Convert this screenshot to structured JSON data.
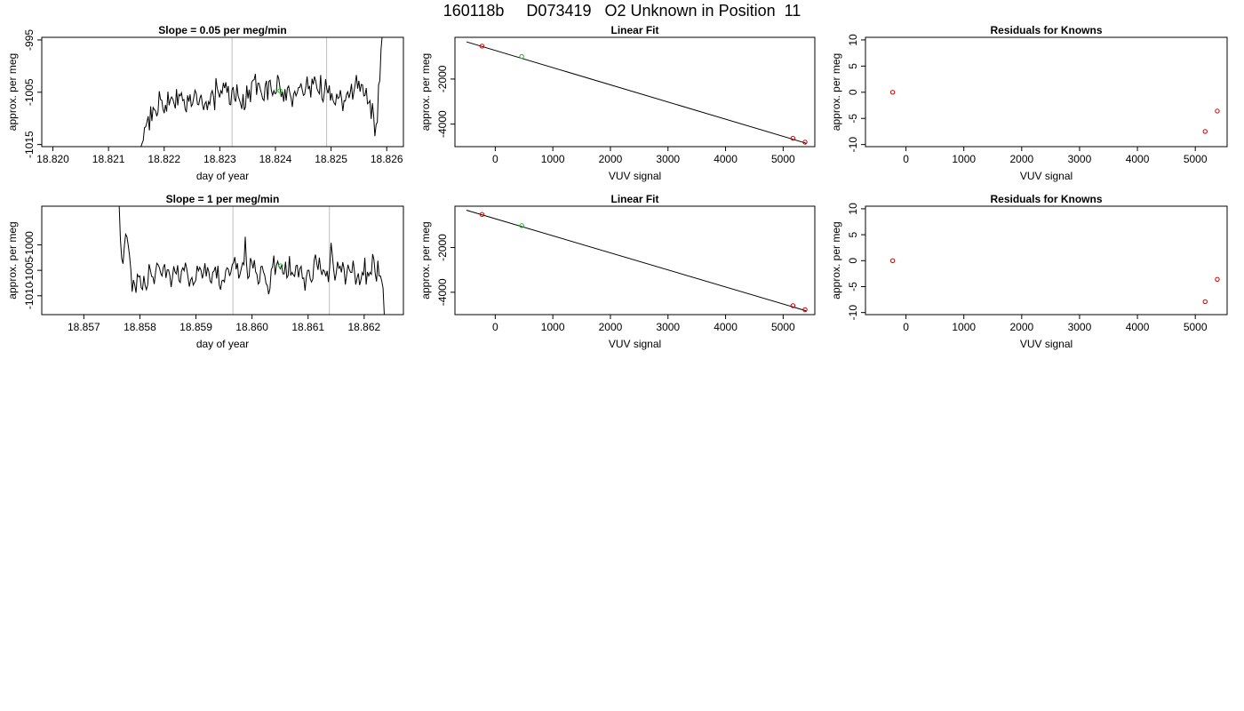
{
  "title": "160118b     D073419   O2 Unknown in Position  11",
  "colors": {
    "line": "#000000",
    "vline": "#bebebe",
    "green": "#00cc00",
    "red": "#cc0000"
  },
  "chart_data": [
    {
      "type": "line",
      "title": "Slope =  0.05  per meg/min",
      "xlabel": "day of year",
      "ylabel": "approx. per meg",
      "xlim": [
        18.8198,
        18.8263
      ],
      "ylim": [
        -1015.4,
        -994.5
      ],
      "xticks": [
        18.82,
        18.821,
        18.822,
        18.823,
        18.824,
        18.825,
        18.826
      ],
      "xtick_labels": [
        "18.820",
        "18.821",
        "18.822",
        "18.823",
        "18.824",
        "18.825",
        "18.826"
      ],
      "yticks": [
        -1015,
        -1005,
        -995
      ],
      "ytick_labels": [
        "-1015",
        "-1005",
        "-995"
      ],
      "vlines": [
        18.82322,
        18.82492
      ],
      "series": {
        "x_start": 18.82158,
        "x_end": 18.82592,
        "y_start": -1015.5,
        "y_end": -994.0,
        "y": [
          -1014.8,
          -1014.2,
          -1011.8,
          -1011.6,
          -1010.7,
          -1009.6,
          -1012.3,
          -1007.7,
          -1010.5,
          -1007.9,
          -1008.3,
          -1008.6,
          -1009.6,
          -1008.7,
          -1004.8,
          -1006.4,
          -1006.5,
          -1008.2,
          -1009.0,
          -1007.4,
          -1008.7,
          -1004.9,
          -1007.5,
          -1006.4,
          -1005.9,
          -1006.3,
          -1007.2,
          -1008.1,
          -1004.4,
          -1007.5,
          -1005.4,
          -1005.7,
          -1005.1,
          -1006.6,
          -1006.4,
          -1008.2,
          -1008.8,
          -1005.6,
          -1006.8,
          -1005.4,
          -1007.7,
          -1007.3,
          -1006.0,
          -1004.6,
          -1005.2,
          -1007.3,
          -1007.4,
          -1006.1,
          -1005.5,
          -1007.3,
          -1008.4,
          -1007.2,
          -1006.8,
          -1008.4,
          -1006.8,
          -1007.3,
          -1005.3,
          -1004.7,
          -1005.8,
          -1008.4,
          -1002.3,
          -1004.2,
          -1005.1,
          -1006.0,
          -1004.7,
          -1005.2,
          -1003.2,
          -1004.2,
          -1003.1,
          -1005.1,
          -1003.8,
          -1007.3,
          -1007.4,
          -1004.6,
          -1004.0,
          -1006.2,
          -1006.8,
          -1003.5,
          -1005.7,
          -1006.4,
          -1007.2,
          -1008.2,
          -1005.4,
          -1008.4,
          -1007.8,
          -1003.7,
          -1006.2,
          -1004.5,
          -1006.9,
          -1003.1,
          -1002.7,
          -1002.6,
          -1001.5,
          -1005.5,
          -1003.3,
          -1003.3,
          -1004.4,
          -1005.3,
          -1006.3,
          -1006.6,
          -1003.7,
          -1002.8,
          -1006.5,
          -1002.9,
          -1002.7,
          -1004.7,
          -1005.6,
          -1004.7,
          -1005.3,
          -1005.1,
          -1001.7,
          -1002.4,
          -1004.2,
          -1005.9,
          -1004.9,
          -1006.8,
          -1004.4,
          -1006.6,
          -1004.2,
          -1003.8,
          -1005.2,
          -1006.1,
          -1007.8,
          -1005.4,
          -1004.8,
          -1005.7,
          -1005.1,
          -1004.1,
          -1004.1,
          -1003.3,
          -1004.5,
          -1005.6,
          -1005.4,
          -1003.9,
          -1002.0,
          -1004.4,
          -1003.8,
          -1006.0,
          -1002.4,
          -1003.5,
          -1002.0,
          -1002.8,
          -1004.3,
          -1004.9,
          -1005.3,
          -1001.7,
          -1006.2,
          -1006.8,
          -1005.1,
          -1002.5,
          -1004.4,
          -1005.2,
          -1003.7,
          -1006.6,
          -1005.2,
          -1006.5,
          -1007.1,
          -1007.4,
          -1005.3,
          -1006.2,
          -1006.0,
          -1004.6,
          -1006.3,
          -1008.6,
          -1006.6,
          -1006.7,
          -1005.4,
          -1004.9,
          -1006.1,
          -1005.1,
          -1003.4,
          -1006.4,
          -1004.9,
          -1003.5,
          -1001.7,
          -1004.3,
          -1002.8,
          -1004.9,
          -1003.5,
          -1003.6,
          -1005.7,
          -1005.6,
          -1004.2,
          -1007.2,
          -1007.0,
          -1006.6,
          -1010.1,
          -1007.1,
          -1009.4,
          -1013.4,
          -1011.2,
          -1010.7,
          -1003.6,
          -1002.8,
          -996.8
        ]
      },
      "marker": {
        "x": 18.82408,
        "y": -1004.7
      }
    },
    {
      "type": "scatter",
      "title": "Linear Fit",
      "xlabel": "VUV signal",
      "ylabel": "approx. per meg",
      "xlim": [
        -700,
        5550
      ],
      "ylim": [
        -5000,
        -150
      ],
      "xticks": [
        0,
        1000,
        2000,
        3000,
        4000,
        5000
      ],
      "xtick_labels": [
        "0",
        "1000",
        "2000",
        "3000",
        "4000",
        "5000"
      ],
      "yticks": [
        -4000,
        -2000
      ],
      "ytick_labels": [
        "-4000",
        "-2000"
      ],
      "fit_line": {
        "x": [
          -500,
          5400
        ],
        "y": [
          -350,
          -4850
        ]
      },
      "points_red": [
        {
          "x": -230,
          "y": -540
        },
        {
          "x": 5170,
          "y": -4630
        },
        {
          "x": 5380,
          "y": -4800
        }
      ],
      "points_green": [
        {
          "x": 460,
          "y": -1000
        }
      ]
    },
    {
      "type": "scatter",
      "title": "Residuals for Knowns",
      "xlabel": "VUV signal",
      "ylabel": "approx. per meg",
      "xlim": [
        -700,
        5550
      ],
      "ylim": [
        -10.4,
        10.5
      ],
      "xticks": [
        0,
        1000,
        2000,
        3000,
        4000,
        5000
      ],
      "xtick_labels": [
        "0",
        "1000",
        "2000",
        "3000",
        "4000",
        "5000"
      ],
      "yticks": [
        -10,
        -5,
        0,
        5,
        10
      ],
      "ytick_labels": [
        "-10",
        "-5",
        "0",
        "5",
        "10"
      ],
      "points_red": [
        {
          "x": -230,
          "y": 0.0
        },
        {
          "x": 5170,
          "y": -7.5
        },
        {
          "x": 5380,
          "y": -3.6
        }
      ]
    },
    {
      "type": "line",
      "title": "Slope =  1  per meg/min",
      "xlabel": "day of year",
      "ylabel": "approx. per meg",
      "xlim": [
        18.85625,
        18.8627
      ],
      "ylim": [
        -1013.7,
        -992.4
      ],
      "xticks": [
        18.857,
        18.858,
        18.859,
        18.86,
        18.861,
        18.862
      ],
      "xtick_labels": [
        "18.857",
        "18.858",
        "18.859",
        "18.860",
        "18.861",
        "18.862"
      ],
      "yticks": [
        -1010,
        -1005,
        -1000
      ],
      "ytick_labels": [
        "-1010",
        "-1005",
        "-1000"
      ],
      "vlines": [
        18.85966,
        18.86138
      ],
      "series": {
        "x_start": 18.85763,
        "x_end": 18.86236,
        "y_start": -992.0,
        "y_end": -1014.0,
        "y": [
          -999.0,
          -1002.7,
          -1003.7,
          -1000.3,
          -997.9,
          -998.4,
          -1000.1,
          -1002.1,
          -1004.9,
          -1009.2,
          -1006.9,
          -1007.9,
          -1009.4,
          -1005.8,
          -1006.3,
          -1006.1,
          -1008.4,
          -1008.8,
          -1006.1,
          -1008.0,
          -1008.8,
          -1007.8,
          -1003.8,
          -1004.9,
          -1006.2,
          -1006.3,
          -1007.7,
          -1005.4,
          -1003.6,
          -1003.9,
          -1004.5,
          -1005.6,
          -1006.1,
          -1004.4,
          -1003.8,
          -1006.5,
          -1004.9,
          -1004.9,
          -1006.0,
          -1008.3,
          -1006.4,
          -1004.2,
          -1005.3,
          -1005.7,
          -1004.0,
          -1007.0,
          -1007.4,
          -1005.1,
          -1004.5,
          -1005.1,
          -1003.5,
          -1004.7,
          -1006.4,
          -1008.2,
          -1006.9,
          -1006.4,
          -1007.9,
          -1007.4,
          -1006.9,
          -1004.1,
          -1005.1,
          -1004.4,
          -1005.0,
          -1006.6,
          -1005.4,
          -1003.6,
          -1006.2,
          -1004.4,
          -1005.3,
          -1007.1,
          -1007.5,
          -1005.4,
          -1005.1,
          -1004.3,
          -1006.6,
          -1004.1,
          -1007.9,
          -1008.8,
          -1007.1,
          -1006.9,
          -1007.3,
          -1005.1,
          -1004.5,
          -1004.8,
          -1006.1,
          -1005.3,
          -1003.9,
          -1003.5,
          -1002.4,
          -1004.8,
          -1003.6,
          -1006.6,
          -1005.8,
          -1004.6,
          -1003.5,
          -1003.9,
          -998.4,
          -1003.8,
          -1006.6,
          -1006.2,
          -1002.6,
          -1003.4,
          -1004.6,
          -1003.0,
          -1005.3,
          -1005.8,
          -1007.7,
          -1007.3,
          -1004.3,
          -1004.2,
          -1005.3,
          -1006.0,
          -1007.6,
          -1008.0,
          -1009.7,
          -1008.6,
          -1004.9,
          -1004.3,
          -1002.1,
          -1005.9,
          -1004.0,
          -1003.2,
          -1004.3,
          -1004.7,
          -1004.0,
          -1005.7,
          -1005.7,
          -1003.3,
          -1006.5,
          -1006.0,
          -1002.2,
          -1006.0,
          -1005.4,
          -1005.9,
          -1006.2,
          -1004.1,
          -1004.0,
          -1006.4,
          -1004.7,
          -1004.2,
          -1006.6,
          -1006.5,
          -1009.0,
          -1006.3,
          -1005.0,
          -1005.0,
          -1006.7,
          -1007.3,
          -1006.7,
          -1003.0,
          -1001.9,
          -1003.7,
          -1004.9,
          -1002.5,
          -1004.8,
          -1005.9,
          -1004.9,
          -1005.2,
          -1006.2,
          -1005.1,
          -1007.3,
          -1004.2,
          -999.6,
          -1002.0,
          -1004.8,
          -1007.0,
          -1005.6,
          -1003.3,
          -1004.6,
          -1004.2,
          -1005.4,
          -1003.4,
          -1004.7,
          -1007.8,
          -1005.9,
          -1003.9,
          -1004.8,
          -1005.4,
          -1005.4,
          -1003.1,
          -1005.2,
          -1007.8,
          -1006.5,
          -1005.6,
          -1007.9,
          -1006.9,
          -1005.4,
          -1006.0,
          -1002.5,
          -1007.8,
          -1005.3,
          -1006.1,
          -1005.4,
          -1005.8,
          -1001.8,
          -1002.9,
          -1005.7,
          -1007.2,
          -1003.1,
          -1006.1,
          -1006.1,
          -1007.1,
          -1008.5
        ]
      },
      "marker": {
        "x": 18.86051,
        "y": -1004.1
      }
    },
    {
      "type": "scatter",
      "title": "Linear Fit",
      "xlabel": "VUV signal",
      "ylabel": "approx. per meg",
      "xlim": [
        -700,
        5550
      ],
      "ylim": [
        -5000,
        -150
      ],
      "xticks": [
        0,
        1000,
        2000,
        3000,
        4000,
        5000
      ],
      "xtick_labels": [
        "0",
        "1000",
        "2000",
        "3000",
        "4000",
        "5000"
      ],
      "yticks": [
        -4000,
        -2000
      ],
      "ytick_labels": [
        "-4000",
        "-2000"
      ],
      "fit_line": {
        "x": [
          -500,
          5400
        ],
        "y": [
          -330,
          -4830
        ]
      },
      "points_red": [
        {
          "x": -230,
          "y": -520
        },
        {
          "x": 5170,
          "y": -4600
        },
        {
          "x": 5380,
          "y": -4780
        }
      ],
      "points_green": [
        {
          "x": 460,
          "y": -1020
        }
      ]
    },
    {
      "type": "scatter",
      "title": "Residuals for Knowns",
      "xlabel": "VUV signal",
      "ylabel": "approx. per meg",
      "xlim": [
        -700,
        5550
      ],
      "ylim": [
        -10.4,
        10.5
      ],
      "xticks": [
        0,
        1000,
        2000,
        3000,
        4000,
        5000
      ],
      "xtick_labels": [
        "0",
        "1000",
        "2000",
        "3000",
        "4000",
        "5000"
      ],
      "yticks": [
        -10,
        -5,
        0,
        5,
        10
      ],
      "ytick_labels": [
        "-10",
        "-5",
        "0",
        "5",
        "10"
      ],
      "points_red": [
        {
          "x": -230,
          "y": 0.0
        },
        {
          "x": 5170,
          "y": -7.9
        },
        {
          "x": 5380,
          "y": -3.6
        }
      ]
    }
  ]
}
